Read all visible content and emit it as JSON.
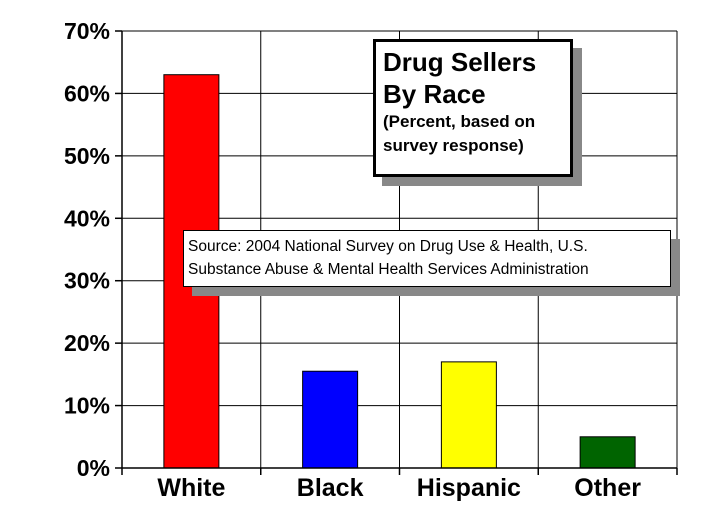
{
  "chart_data": {
    "type": "bar",
    "categories": [
      "White",
      "Black",
      "Hispanic",
      "Other"
    ],
    "values": [
      63,
      15.5,
      17,
      5
    ],
    "colors": [
      "#ff0000",
      "#0000ff",
      "#ffff00",
      "#006400"
    ],
    "ylim": [
      0,
      70
    ],
    "yticks": [
      "0%",
      "10%",
      "20%",
      "30%",
      "40%",
      "50%",
      "60%",
      "70%"
    ],
    "grid": true,
    "title_lines": [
      "Drug Sellers",
      "By Race"
    ],
    "subtitle_lines": [
      "(Percent, based on",
      "survey response)"
    ],
    "source_lines": [
      "Source: 2004 National Survey on Drug Use & Health, U.S.",
      "Substance Abuse & Mental Health Services Administration"
    ]
  }
}
